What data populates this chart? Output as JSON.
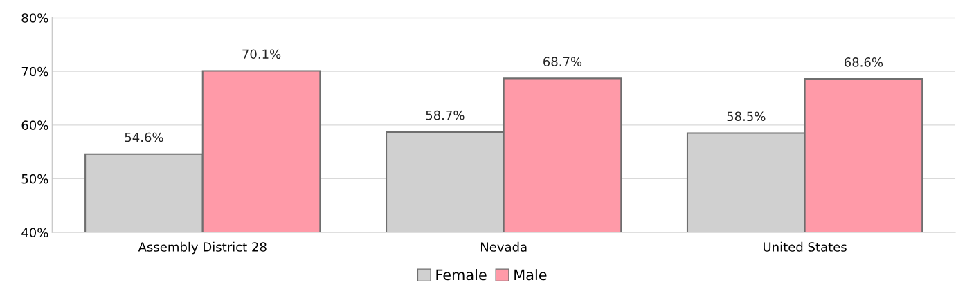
{
  "chart_data": {
    "type": "bar",
    "categories": [
      "Assembly District 28",
      "Nevada",
      "United States"
    ],
    "series": [
      {
        "name": "Female",
        "color": "#d0d0d0",
        "values": [
          54.6,
          58.7,
          58.5
        ],
        "value_labels": [
          "54.6%",
          "58.7%",
          "58.5%"
        ]
      },
      {
        "name": "Male",
        "color": "#ff9aa8",
        "values": [
          70.1,
          68.7,
          68.6
        ],
        "value_labels": [
          "70.1%",
          "68.7%",
          "68.6%"
        ]
      }
    ],
    "ylim": [
      40,
      80
    ],
    "yticks": [
      {
        "value": 40,
        "label": "40%"
      },
      {
        "value": 50,
        "label": "50%"
      },
      {
        "value": 60,
        "label": "60%"
      },
      {
        "value": 70,
        "label": "70%"
      },
      {
        "value": 80,
        "label": "80%"
      }
    ],
    "grid": "y",
    "legend": "bottom"
  }
}
